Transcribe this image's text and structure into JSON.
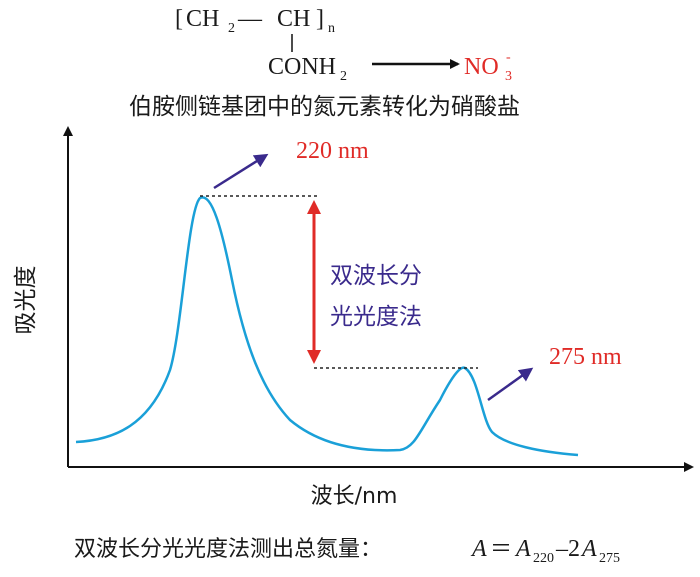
{
  "formula": {
    "bracket_left": "[",
    "bracket_right": "]",
    "ch2": "CH",
    "ch2_sub": "2",
    "bond": "—",
    "ch": "CH",
    "n_sub": "n",
    "side_group": "CONH",
    "side_group_sub": "2",
    "product": "NO",
    "product_sub": "3",
    "product_sup": "-",
    "caption": "伯胺侧链基团中的氮元素转化为硝酸盐"
  },
  "chart_data": {
    "type": "line",
    "ylabel": "吸光度",
    "xlabel": "波长/nm",
    "peaks": [
      {
        "label": "220 nm",
        "wavelength": 220
      },
      {
        "label": "275 nm",
        "wavelength": 275
      }
    ],
    "method_label_line1": "双波长分",
    "method_label_line2": "光光度法",
    "curve_color": "#1aa0d8",
    "arrow_red": "#e02b27",
    "arrow_purple": "#3a2a8c"
  },
  "footer": {
    "prefix": "双波长分光光度法测出总氮量：",
    "A": "A",
    "eq": "＝",
    "A1": "A",
    "sub1": "220",
    "minus": "–2",
    "A2": "A",
    "sub2": "275"
  }
}
